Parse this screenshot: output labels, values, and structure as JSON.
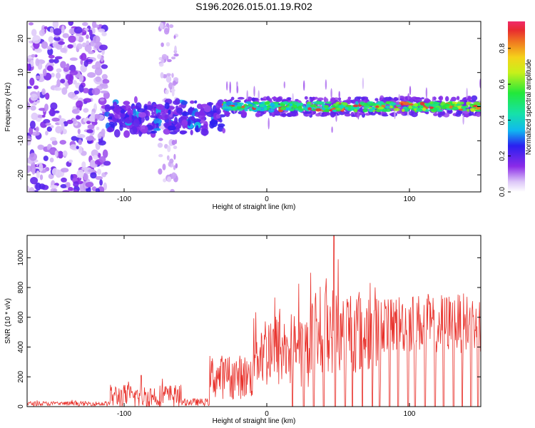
{
  "colors": {
    "snr_line": "#e8302a",
    "frame": "#000000",
    "background": "#ffffff"
  },
  "chart_data": [
    {
      "type": "heatmap",
      "title": "S196.2026.015.01.19.R02",
      "xlabel": "Height of straight line (km)",
      "ylabel": "Frequency (Hz)",
      "xlim": [
        -168,
        150
      ],
      "ylim": [
        -25,
        25
      ],
      "x_ticks": [
        -100,
        0,
        100
      ],
      "y_ticks": [
        -20,
        -10,
        0,
        10,
        20
      ],
      "colorbar": {
        "label": "Normalized spectral amplitude",
        "range": [
          0,
          0.95
        ],
        "ticks": [
          0.0,
          0.2,
          0.4,
          0.6,
          0.8
        ],
        "colormap": "rainbow (violet to red)"
      },
      "features": [
        {
          "name": "noise-region",
          "x_range": [
            -168,
            -112
          ],
          "freq_range": [
            -25,
            25
          ],
          "amplitude": 0.1
        },
        {
          "name": "broad-noise-column",
          "x_range": [
            -75,
            -63
          ],
          "freq_range": [
            -25,
            25
          ],
          "amplitude": 0.05
        },
        {
          "name": "onset-band",
          "x_range": [
            -112,
            -30
          ],
          "freq_center": -3,
          "freq_halfwidth": 4,
          "amplitude": 0.2
        },
        {
          "name": "main-signal-band",
          "x_range": [
            -30,
            150
          ],
          "freq_center": 0,
          "freq_halfwidth": 2,
          "amplitude": 0.6
        }
      ]
    },
    {
      "type": "line",
      "title": "",
      "xlabel": "Height of straight line (km)",
      "ylabel": "SNR (10 * v/v)",
      "xlim": [
        -168,
        150
      ],
      "ylim": [
        0,
        1150
      ],
      "x_ticks": [
        -100,
        0,
        100
      ],
      "y_ticks": [
        0,
        200,
        400,
        600,
        800,
        1000
      ],
      "series": [
        {
          "name": "SNR",
          "x_step": 1,
          "x_start": -168,
          "segments": [
            {
              "x_range": [
                -168,
                -110
              ],
              "level": 20,
              "spread": 15
            },
            {
              "x_range": [
                -110,
                -60
              ],
              "level": 70,
              "spread": 80,
              "peak": 210,
              "peak_at": -88
            },
            {
              "x_range": [
                -60,
                -40
              ],
              "level": 30,
              "spread": 25
            },
            {
              "x_range": [
                -40,
                -10
              ],
              "level": 200,
              "spread": 150
            },
            {
              "x_range": [
                -10,
                30
              ],
              "level": 380,
              "spread": 260
            },
            {
              "x_range": [
                30,
                80
              ],
              "level": 520,
              "spread": 300,
              "peak": 1150,
              "peak_at": 47
            },
            {
              "x_range": [
                80,
                150
              ],
              "level": 560,
              "spread": 200
            }
          ],
          "dropouts_to_zero_near": [
            18,
            26,
            33,
            40,
            48,
            55,
            60,
            67,
            74,
            79,
            86,
            92,
            99,
            104,
            111,
            118,
            124,
            131,
            137,
            143,
            148
          ]
        }
      ]
    }
  ]
}
